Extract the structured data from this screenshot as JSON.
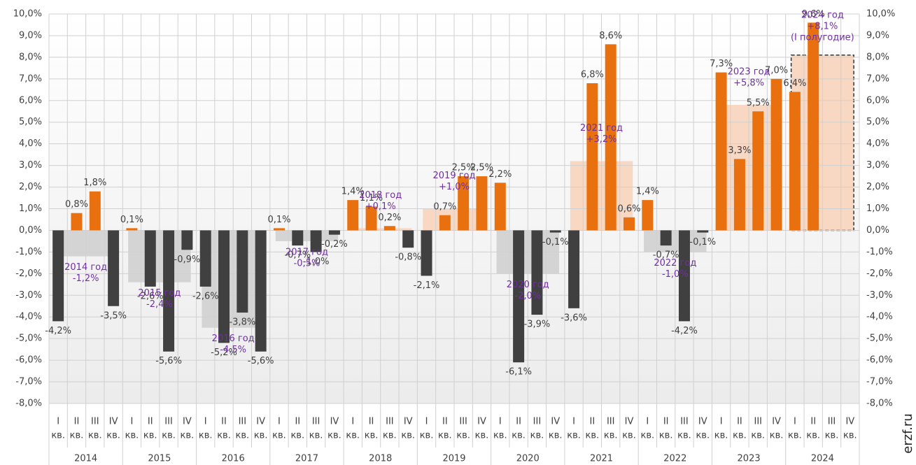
{
  "chart_data": {
    "type": "bar",
    "ylim": [
      -8,
      10
    ],
    "yticks": [
      {
        "value": -8,
        "label": "-8,0%"
      },
      {
        "value": -7,
        "label": "-7,0%"
      },
      {
        "value": -6,
        "label": "-6,0%"
      },
      {
        "value": -5,
        "label": "-5,0%"
      },
      {
        "value": -4,
        "label": "-4,0%"
      },
      {
        "value": -3,
        "label": "-3,0%"
      },
      {
        "value": -2,
        "label": "-2,0%"
      },
      {
        "value": -1,
        "label": "-1,0%"
      },
      {
        "value": 0,
        "label": "0,0%"
      },
      {
        "value": 1,
        "label": "1,0%"
      },
      {
        "value": 2,
        "label": "2,0%"
      },
      {
        "value": 3,
        "label": "3,0%"
      },
      {
        "value": 4,
        "label": "4,0%"
      },
      {
        "value": 5,
        "label": "5,0%"
      },
      {
        "value": 6,
        "label": "6,0%"
      },
      {
        "value": 7,
        "label": "7,0%"
      },
      {
        "value": 8,
        "label": "8,0%"
      },
      {
        "value": 9,
        "label": "9,0%"
      },
      {
        "value": 10,
        "label": "10,0%"
      }
    ],
    "y2lim": [
      -8,
      10
    ],
    "y2ticks": [
      {
        "value": -8,
        "label": "-8,0%"
      },
      {
        "value": -7,
        "label": "-7,0%"
      },
      {
        "value": -6,
        "label": "-6,0%"
      },
      {
        "value": -5,
        "label": "-5,0%"
      },
      {
        "value": -4,
        "label": "-4,0%"
      },
      {
        "value": -3,
        "label": "-3,0%"
      },
      {
        "value": -2,
        "label": "-2,0%"
      },
      {
        "value": -1,
        "label": "-1,0%"
      },
      {
        "value": 0,
        "label": "0,0%"
      },
      {
        "value": 1,
        "label": "1,0%"
      },
      {
        "value": 2,
        "label": "2,0%"
      },
      {
        "value": 3,
        "label": "3,0%"
      },
      {
        "value": 4,
        "label": "4,0%"
      },
      {
        "value": 5,
        "label": "5,0%"
      },
      {
        "value": 6,
        "label": "6,0%"
      },
      {
        "value": 7,
        "label": "7,0%"
      },
      {
        "value": 8,
        "label": "8,0%"
      },
      {
        "value": 9,
        "label": "9,0%"
      },
      {
        "value": 10,
        "label": "10,0%"
      }
    ],
    "grid": true,
    "years": [
      "2014",
      "2015",
      "2016",
      "2017",
      "2018",
      "2019",
      "2020",
      "2021",
      "2022",
      "2023",
      "2024"
    ],
    "quarters": [
      "I",
      "II",
      "III",
      "IV"
    ],
    "quarter_suffix": "кв.",
    "positive_color": "#e8700f",
    "negative_color": "#404040",
    "annual_positive_color": "#f8d8c2",
    "annual_negative_color": "#d4d4d4",
    "annotation_color": "#7030a0",
    "values": [
      -4.2,
      0.8,
      1.8,
      -3.5,
      0.1,
      -2.6,
      -5.6,
      -0.9,
      -2.6,
      -5.2,
      -3.8,
      -5.6,
      0.1,
      -0.7,
      -1.0,
      -0.2,
      1.4,
      1.1,
      0.2,
      -0.8,
      -2.1,
      0.7,
      2.5,
      2.5,
      2.2,
      -6.1,
      -3.9,
      -0.1,
      -3.6,
      6.8,
      8.6,
      0.6,
      1.4,
      -0.7,
      -4.2,
      -0.1,
      7.3,
      3.3,
      5.5,
      7.0,
      6.4,
      9.6,
      null,
      null
    ],
    "value_labels": [
      "-4,2%",
      "0,8%",
      "1,8%",
      "-3,5%",
      "0,1%",
      "-2,6%",
      "-5,6%",
      "-0,9%",
      "-2,6%",
      "-5,2%",
      "-3,8%",
      "-5,6%",
      "0,1%",
      "-0,7%",
      "-1,0%",
      "-0,2%",
      "1,4%",
      "1,1%",
      "0,2%",
      "-0,8%",
      "-2,1%",
      "0,7%",
      "2,5%",
      "2,5%",
      "2,2%",
      "-6,1%",
      "-3,9%",
      "-0,1%",
      "-3,6%",
      "6,8%",
      "8,6%",
      "0,6%",
      "1,4%",
      "-0,7%",
      "-4,2%",
      "-0,1%",
      "7,3%",
      "3,3%",
      "5,5%",
      "7,0%",
      "6,4%",
      "9,6%",
      null,
      null
    ],
    "annual_values": [
      -1.2,
      -2.4,
      -4.5,
      -0.5,
      0.1,
      1.0,
      -2.0,
      3.2,
      -1.0,
      5.8,
      8.1
    ],
    "annual_dashed": [
      false,
      false,
      false,
      false,
      false,
      false,
      false,
      false,
      false,
      false,
      true
    ],
    "annual_labels": [
      [
        "2014 год",
        "-1,2%"
      ],
      [
        "2015 год",
        "-2,4%"
      ],
      [
        "2016 год",
        "-4,5%"
      ],
      [
        "2017 год",
        "-0,5%"
      ],
      [
        "2018 год",
        "+0,1%"
      ],
      [
        "2019 год",
        "+1,0%"
      ],
      [
        "2020 год",
        "-2,0%"
      ],
      [
        "2021 год",
        "+3,2%"
      ],
      [
        "2022 год",
        "-1,0%"
      ],
      [
        "2023 год",
        "+5,8%"
      ],
      [
        "2024 год",
        "+8,1%",
        "(I полугодие)"
      ]
    ],
    "watermark": "erzf.ru"
  }
}
